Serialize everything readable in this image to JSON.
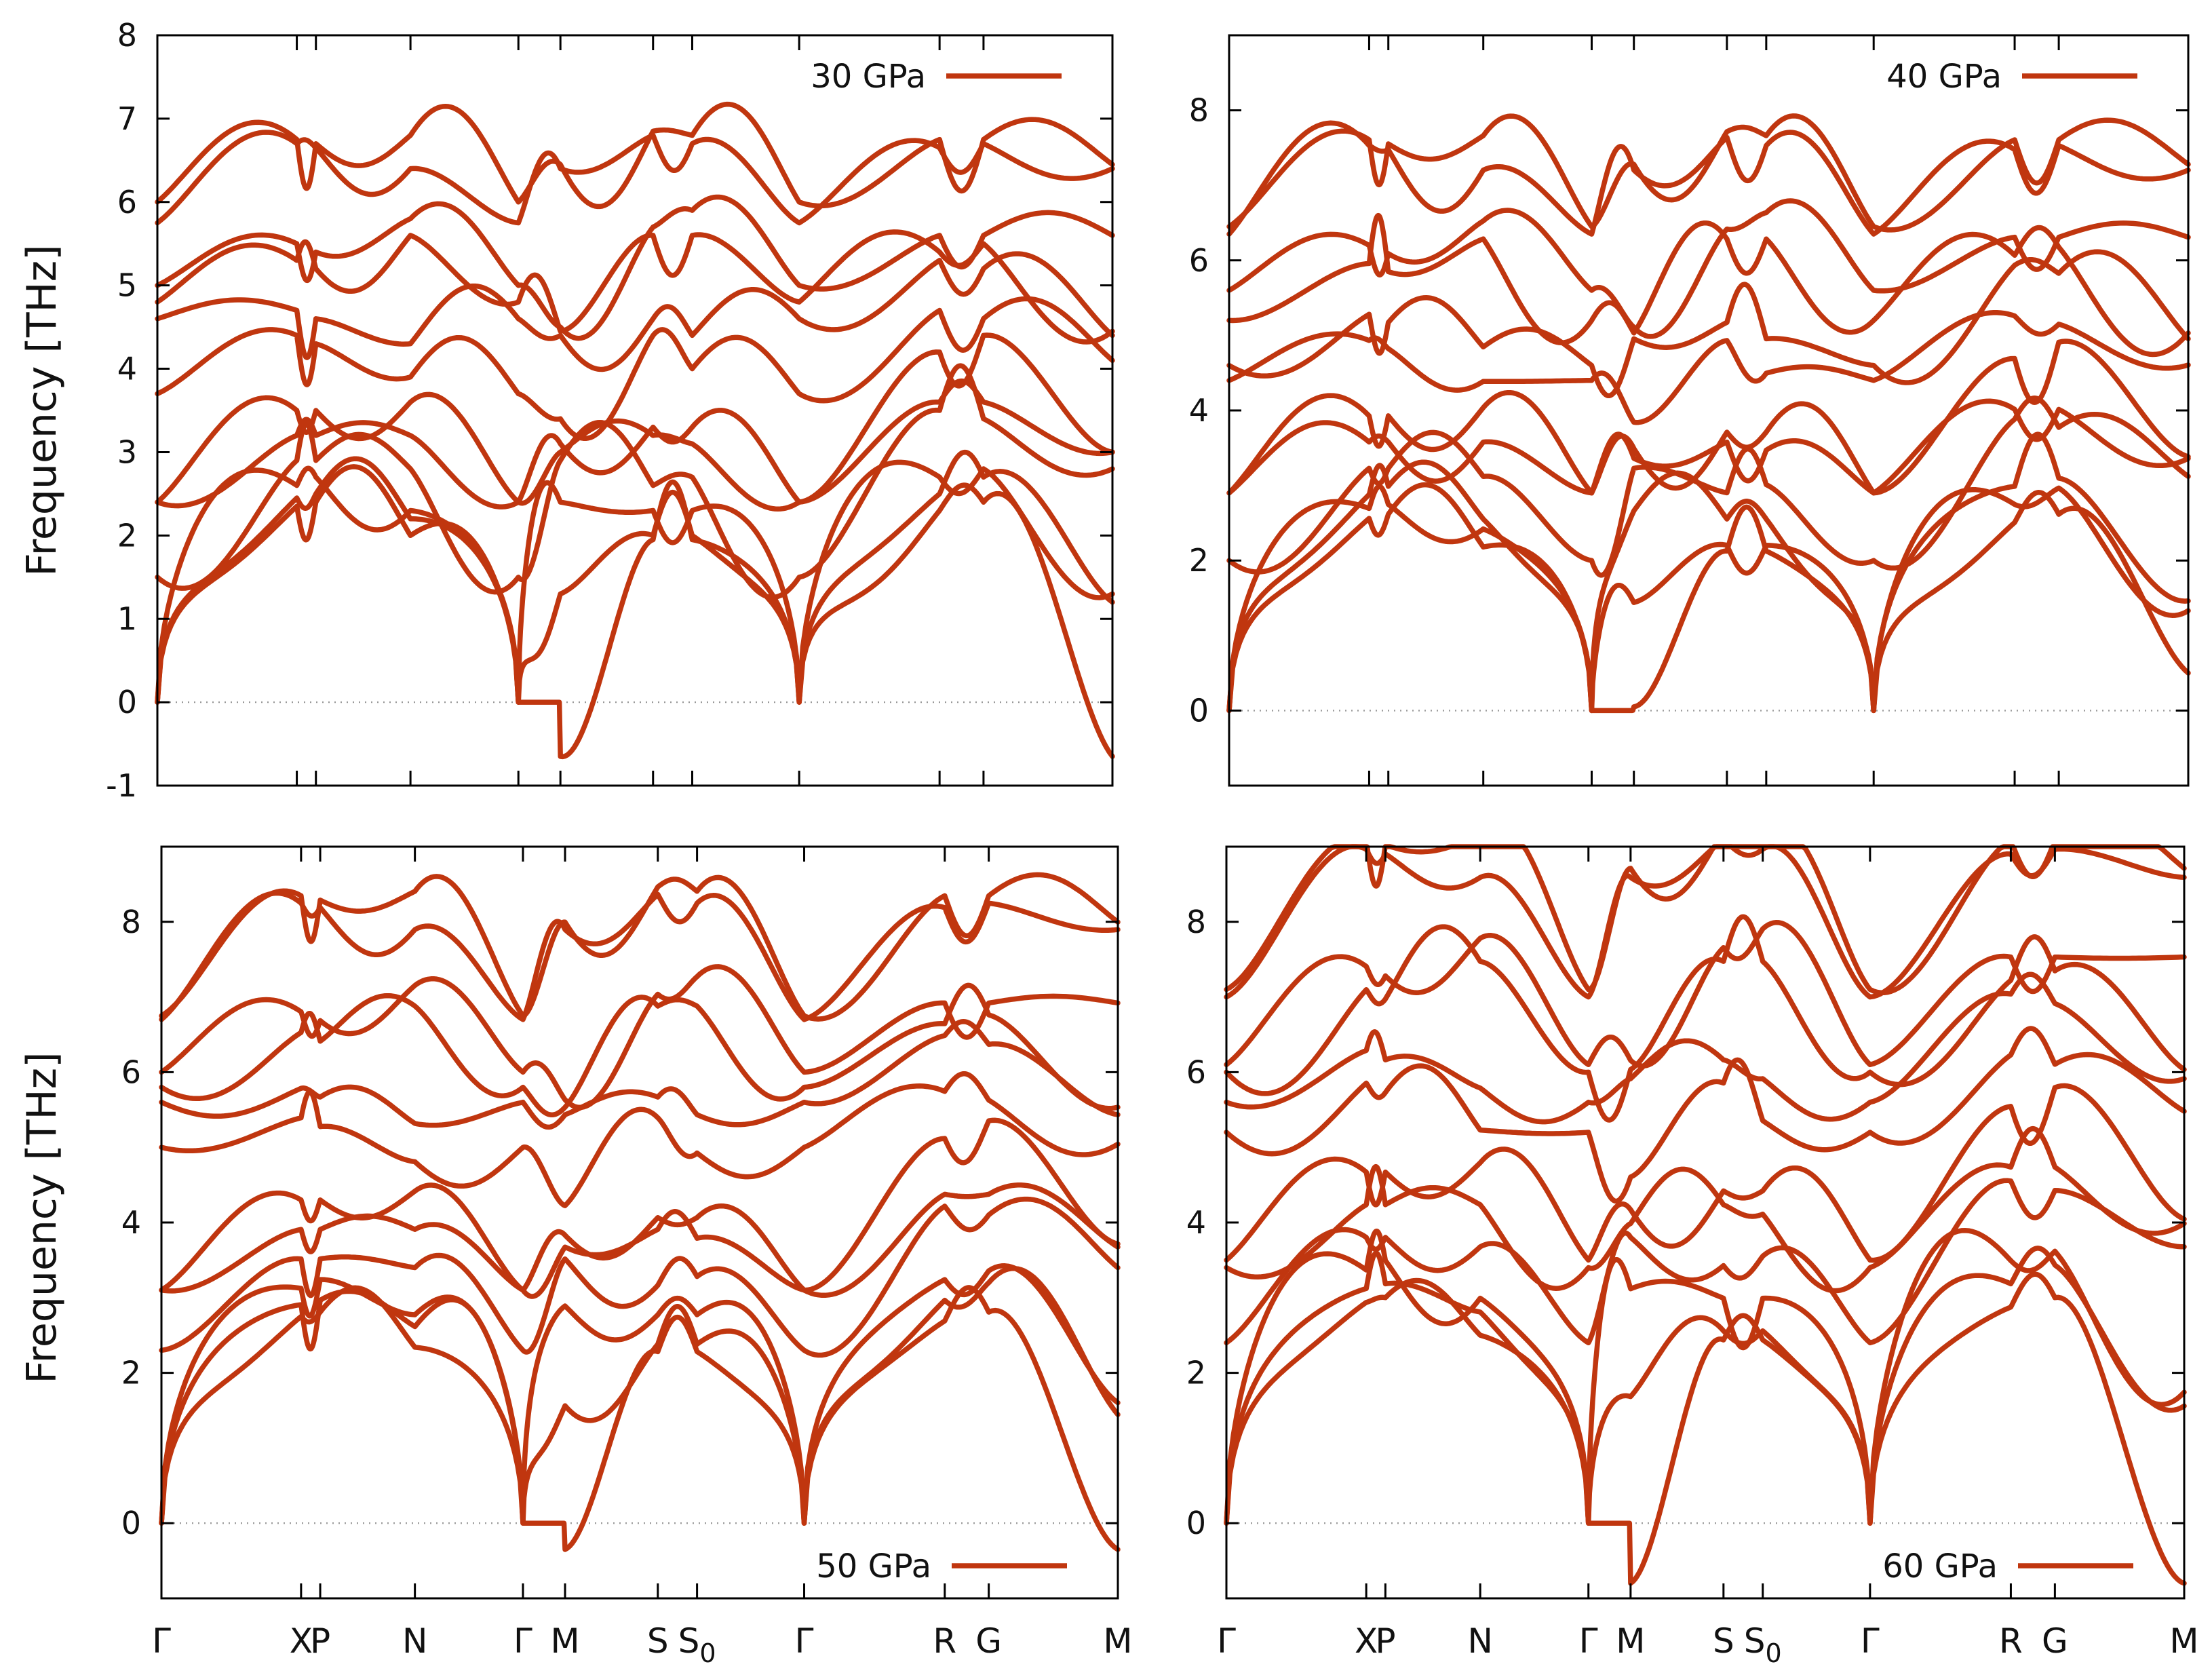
{
  "figure": {
    "line_color": "#c0360f"
  },
  "chart_data": [
    {
      "type": "line",
      "title": "30 GPa",
      "legend": {
        "label": "30 GPa",
        "placement": "top-right"
      },
      "ylabel": "Frequency [THz]",
      "xlabel": "",
      "ylim": [
        -1,
        8
      ],
      "yticks": [
        -1,
        0,
        1,
        2,
        3,
        4,
        5,
        6,
        7,
        8
      ],
      "x_ticks": [
        "Γ",
        "X",
        "P",
        "N",
        "Γ",
        "M",
        "S",
        "S0",
        "Γ",
        "R",
        "G",
        "M"
      ],
      "x_labels_shown": false,
      "min_frequency": -0.65,
      "shift": 0,
      "scale": 1.0,
      "gamma_values": [
        0,
        0,
        0,
        1.5,
        2.4,
        2.4,
        3.7,
        4.6,
        4.8,
        5.0,
        5.75,
        6.0
      ]
    },
    {
      "type": "line",
      "title": "40 GPa",
      "legend": {
        "label": "40 GPa",
        "placement": "top-right"
      },
      "ylabel": "",
      "xlabel": "",
      "ylim": [
        -1,
        9
      ],
      "yticks": [
        0,
        2,
        4,
        6,
        8
      ],
      "x_ticks": [
        "Γ",
        "X",
        "P",
        "N",
        "Γ",
        "M",
        "S",
        "S0",
        "Γ",
        "R",
        "G",
        "M"
      ],
      "x_labels_shown": false,
      "min_frequency": 0,
      "shift": 0.25,
      "scale": 1.09,
      "gamma_values": [
        0,
        0,
        0,
        2.0,
        2.9,
        2.9,
        4.4,
        4.6,
        5.2,
        5.6,
        6.35,
        6.45
      ]
    },
    {
      "type": "line",
      "title": "50 GPa",
      "legend": {
        "label": "50 GPa",
        "placement": "bottom-right"
      },
      "ylabel": "Frequency [THz]",
      "xlabel": "",
      "ylim": [
        -1,
        9
      ],
      "yticks": [
        0,
        2,
        4,
        6,
        8
      ],
      "x_ticks": [
        "Γ",
        "X",
        "P",
        "N",
        "Γ",
        "M",
        "S",
        "S0",
        "Γ",
        "R",
        "G",
        "M"
      ],
      "x_labels_shown": true,
      "min_frequency": -0.35,
      "shift": 0.45,
      "scale": 1.17,
      "gamma_values": [
        0,
        0,
        0,
        2.3,
        3.1,
        3.1,
        5.0,
        5.6,
        5.8,
        6.0,
        6.7,
        6.75
      ]
    },
    {
      "type": "line",
      "title": "60 GPa",
      "legend": {
        "label": "60 GPa",
        "placement": "bottom-right"
      },
      "ylabel": "",
      "xlabel": "",
      "ylim": [
        -1,
        9
      ],
      "yticks": [
        0,
        2,
        4,
        6,
        8
      ],
      "x_ticks": [
        "Γ",
        "X",
        "P",
        "N",
        "Γ",
        "M",
        "S",
        "S0",
        "Γ",
        "R",
        "G",
        "M"
      ],
      "x_labels_shown": true,
      "min_frequency": -0.8,
      "shift": 0.65,
      "scale": 1.25,
      "gamma_values": [
        0,
        0,
        0,
        2.4,
        3.4,
        3.5,
        5.2,
        5.6,
        6.0,
        6.1,
        7.0,
        7.1
      ]
    }
  ]
}
